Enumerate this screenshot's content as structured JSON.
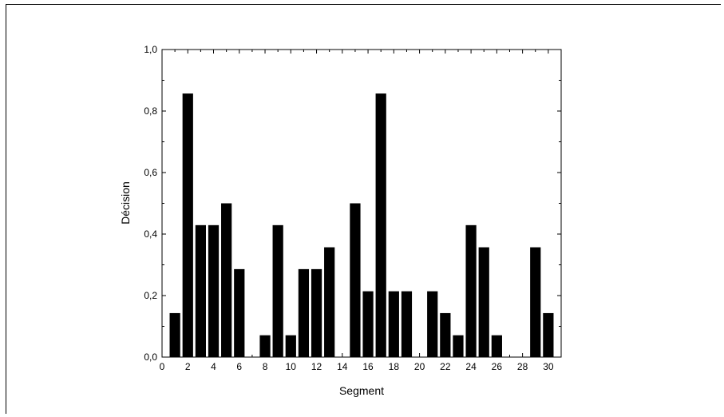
{
  "chart_data": {
    "type": "bar",
    "title": "",
    "xlabel": "Segment",
    "ylabel": "Décision",
    "xlim": [
      0,
      31
    ],
    "ylim": [
      0,
      1
    ],
    "x_ticks": [
      "0",
      "2",
      "4",
      "6",
      "8",
      "10",
      "12",
      "14",
      "16",
      "18",
      "20",
      "22",
      "24",
      "26",
      "28",
      "30"
    ],
    "y_ticks": [
      "0,0",
      "0,2",
      "0,4",
      "0,6",
      "0,8",
      "1,0"
    ],
    "categories": [
      1,
      2,
      3,
      4,
      5,
      6,
      7,
      8,
      9,
      10,
      11,
      12,
      13,
      14,
      15,
      16,
      17,
      18,
      19,
      20,
      21,
      22,
      23,
      24,
      25,
      26,
      27,
      28,
      29,
      30
    ],
    "values": [
      0.143,
      0.857,
      0.429,
      0.429,
      0.5,
      0.286,
      0,
      0.071,
      0.429,
      0.071,
      0.286,
      0.286,
      0.357,
      0,
      0.5,
      0.214,
      0.857,
      0.214,
      0.214,
      0,
      0.214,
      0.143,
      0.071,
      0.429,
      0.357,
      0.071,
      0,
      0,
      0.357,
      0.143
    ],
    "bar_color": "#000000",
    "grid": false,
    "legend": "none"
  }
}
